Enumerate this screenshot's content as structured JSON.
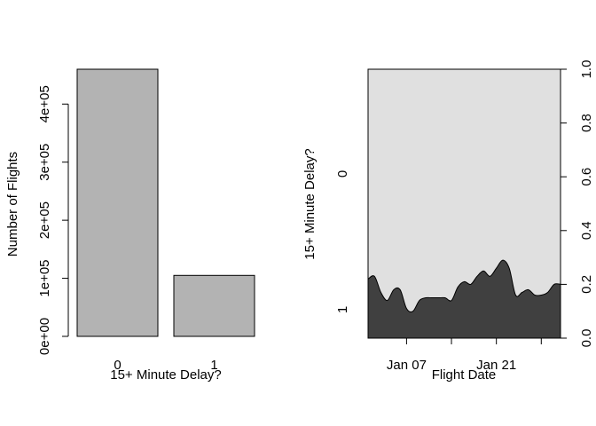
{
  "chart_data": [
    {
      "type": "bar",
      "categories": [
        "0",
        "1"
      ],
      "values": [
        460000,
        105000
      ],
      "xlabel": "15+ Minute Delay?",
      "ylabel": "Number of Flights",
      "ylim": [
        0,
        460000
      ],
      "yticks": [
        0,
        100000,
        200000,
        300000,
        400000
      ],
      "ytick_labels": [
        "0e+00",
        "1e+05",
        "2e+05",
        "3e+05",
        "4e+05"
      ],
      "bar_color": "#b3b3b3",
      "grid": false
    },
    {
      "type": "area",
      "subtype": "conditional-density",
      "xlabel": "Flight Date",
      "ylabel": "15+ Minute Delay?",
      "x_tick_labels": [
        "Jan 07",
        "Jan 21"
      ],
      "left_axis_labels": [
        "0",
        "1"
      ],
      "right_yticks": [
        0.0,
        0.2,
        0.4,
        0.6,
        0.8,
        1.0
      ],
      "right_ytick_labels": [
        "0.0",
        "0.2",
        "0.4",
        "0.6",
        "0.8",
        "1.0"
      ],
      "ylim": [
        0,
        1
      ],
      "xlim": [
        "2019-01-01",
        "2019-01-31"
      ],
      "x_ticks_dates": [
        "2019-01-07",
        "2019-01-14",
        "2019-01-21",
        "2019-01-28"
      ],
      "series": [
        {
          "x": [
            "2019-01-01",
            "2019-01-02",
            "2019-01-03",
            "2019-01-04",
            "2019-01-05",
            "2019-01-06",
            "2019-01-07",
            "2019-01-08",
            "2019-01-09",
            "2019-01-10",
            "2019-01-11",
            "2019-01-12",
            "2019-01-13",
            "2019-01-14",
            "2019-01-15",
            "2019-01-16",
            "2019-01-17",
            "2019-01-18",
            "2019-01-19",
            "2019-01-20",
            "2019-01-21",
            "2019-01-22",
            "2019-01-23",
            "2019-01-24",
            "2019-01-25",
            "2019-01-26",
            "2019-01-27",
            "2019-01-28",
            "2019-01-29",
            "2019-01-30",
            "2019-01-31"
          ],
          "values": [
            0.22,
            0.23,
            0.17,
            0.14,
            0.18,
            0.18,
            0.11,
            0.1,
            0.14,
            0.15,
            0.15,
            0.15,
            0.15,
            0.14,
            0.19,
            0.21,
            0.2,
            0.23,
            0.25,
            0.23,
            0.26,
            0.29,
            0.26,
            0.16,
            0.17,
            0.18,
            0.16,
            0.16,
            0.17,
            0.2,
            0.2
          ]
        }
      ],
      "upper_color": "#e0e0e0",
      "lower_color": "#404040",
      "grid": false
    }
  ]
}
